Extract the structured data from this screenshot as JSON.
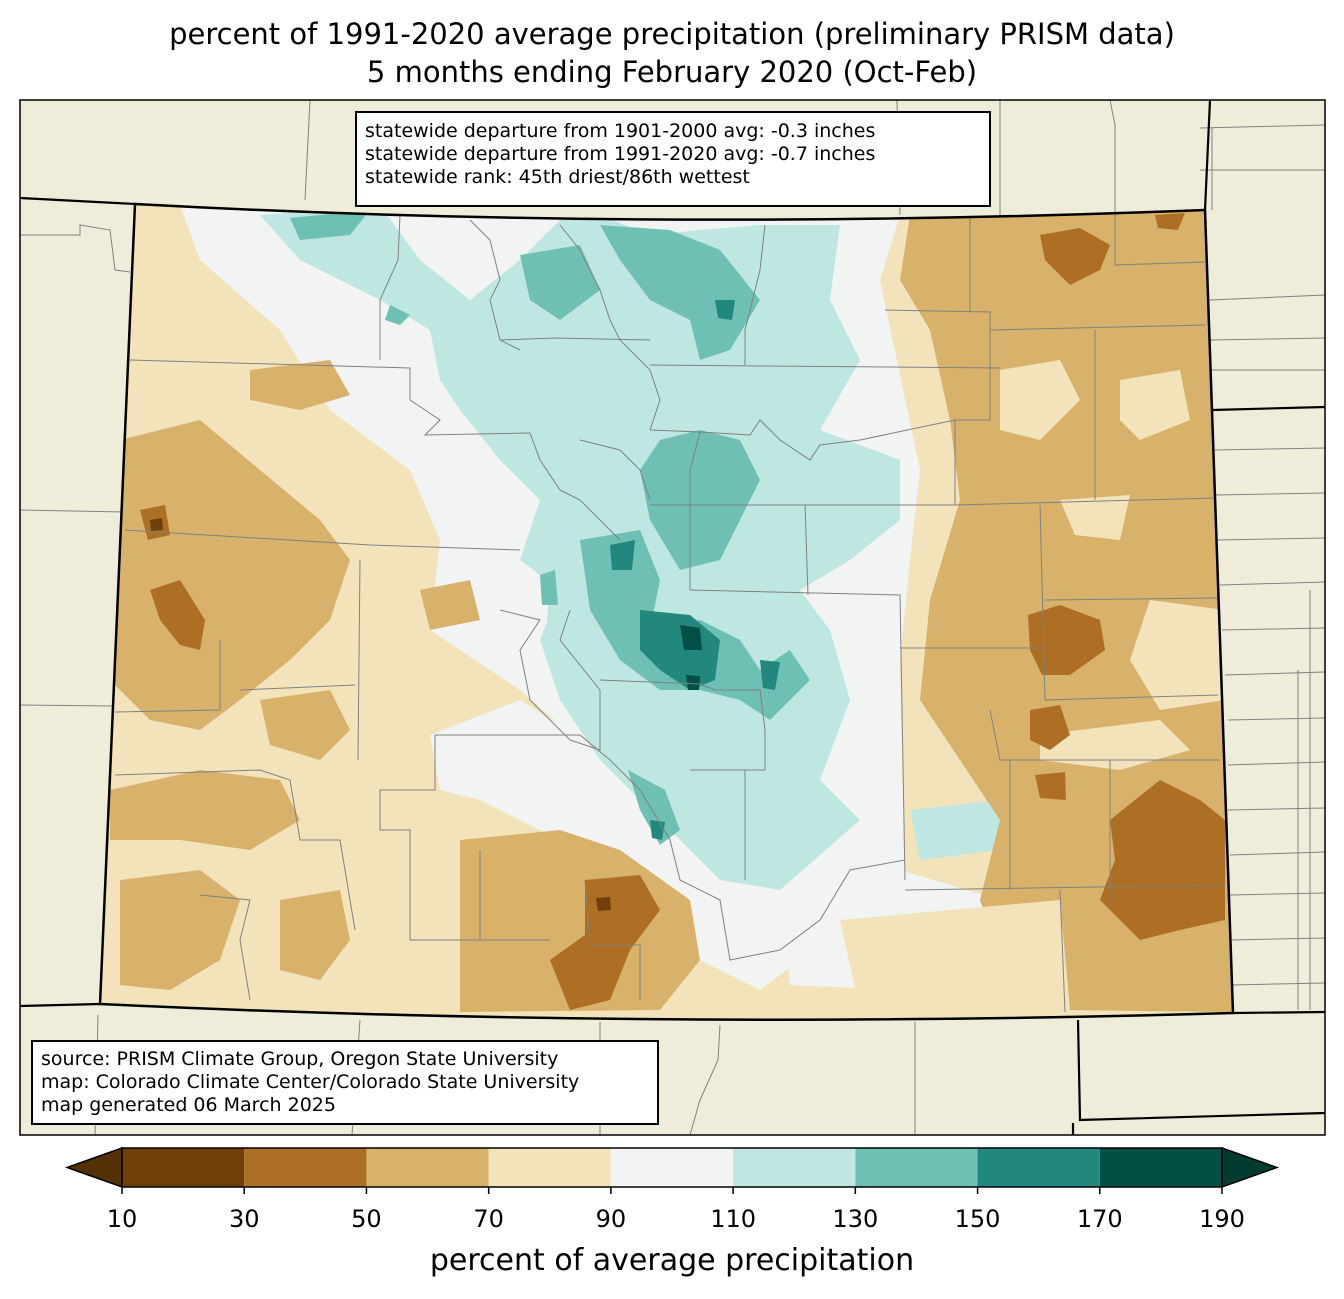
{
  "title": {
    "line1": "percent of 1991-2020 average precipitation (preliminary PRISM data)",
    "line2": "5 months ending February 2020 (Oct-Feb)"
  },
  "stats_box": {
    "line1": "statewide departure from 1901-2000 avg: -0.3 inches",
    "line2": "statewide departure from 1991-2020 avg: -0.7 inches",
    "line3": "statewide rank: 45th driest/86th wettest"
  },
  "source_box": {
    "line1": "source: PRISM Climate Group, Oregon State University",
    "line2": "map: Colorado Climate Center/Colorado State University",
    "line3": "map generated 06 March 2025"
  },
  "colorbar": {
    "label": "percent of average precipitation",
    "ticks": [
      "10",
      "30",
      "50",
      "70",
      "90",
      "110",
      "130",
      "150",
      "170",
      "190"
    ],
    "bins": [
      {
        "range": "<10",
        "color": "#543005"
      },
      {
        "range": "10-30",
        "color": "#6f3f0a"
      },
      {
        "range": "30-50",
        "color": "#ad6f23"
      },
      {
        "range": "50-70",
        "color": "#d8b26b"
      },
      {
        "range": "70-90",
        "color": "#f3e3bb"
      },
      {
        "range": "90-110",
        "color": "#f2f4f3"
      },
      {
        "range": "110-130",
        "color": "#bfe7e2"
      },
      {
        "range": "130-150",
        "color": "#6ec0b4"
      },
      {
        "range": "150-170",
        "color": "#22877c"
      },
      {
        "range": "170-190",
        "color": "#005046"
      },
      {
        "range": ">190",
        "color": "#003c30"
      }
    ]
  },
  "colors": {
    "land_background": "#efedda",
    "county_lines": "#808080",
    "state_border": "#000000"
  }
}
